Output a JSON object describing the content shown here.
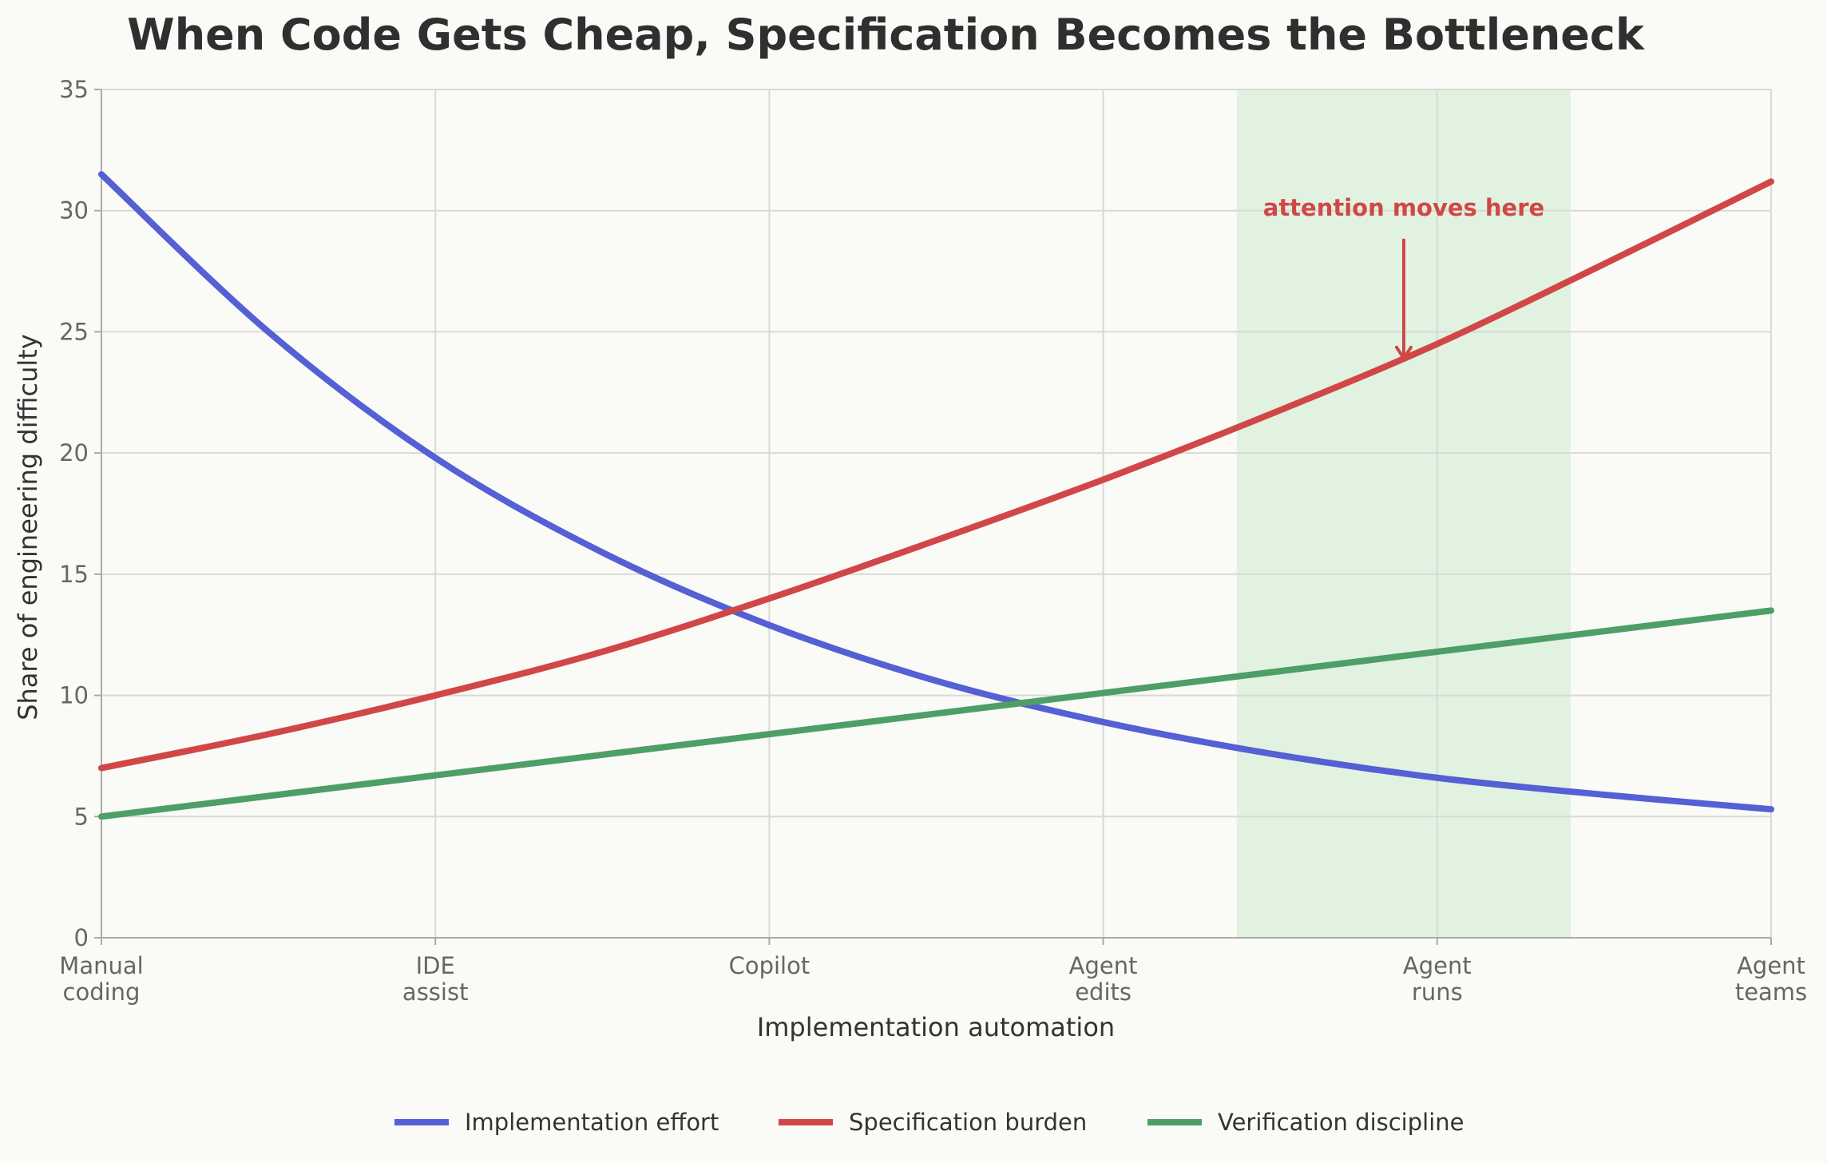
{
  "chart_data": {
    "type": "line",
    "title": "When Code Gets Cheap, Specification Becomes the Bottleneck",
    "xlabel": "Implementation automation",
    "ylabel": "Share of engineering difficulty",
    "categories": [
      [
        "Manual",
        "coding"
      ],
      [
        "IDE",
        "assist"
      ],
      [
        "Copilot"
      ],
      [
        "Agent",
        "edits"
      ],
      [
        "Agent",
        "runs"
      ],
      [
        "Agent",
        "teams"
      ]
    ],
    "xlim": [
      0,
      5
    ],
    "ylim": [
      0,
      35
    ],
    "yticks": [
      0,
      5,
      10,
      15,
      20,
      25,
      30,
      35
    ],
    "grid": true,
    "legend_position": "bottom-center",
    "x": [
      0,
      0.5,
      1,
      1.5,
      2,
      2.5,
      3,
      3.5,
      4,
      4.5,
      5
    ],
    "series": [
      {
        "name": "Implementation effort",
        "color": "#5460d4",
        "values": [
          31.5,
          25.0,
          19.8,
          15.9,
          12.9,
          10.6,
          8.9,
          7.6,
          6.6,
          5.9,
          5.3
        ]
      },
      {
        "name": "Specification burden",
        "color": "#d14747",
        "values": [
          7.0,
          8.4,
          10.0,
          11.8,
          14.0,
          16.4,
          18.9,
          21.6,
          24.5,
          27.8,
          31.2
        ]
      },
      {
        "name": "Verification discipline",
        "color": "#4e9e68",
        "values": [
          5.0,
          5.85,
          6.7,
          7.55,
          8.4,
          9.25,
          10.1,
          10.95,
          11.8,
          12.65,
          13.5
        ]
      }
    ],
    "highlight_band": {
      "x_start": 3.4,
      "x_end": 4.4,
      "color": "#e2f2e0"
    },
    "annotation": {
      "text": "attention moves here",
      "color": "#d14747",
      "points_to": {
        "x": 3.9,
        "y": 23.9
      },
      "text_at": {
        "x": 3.9,
        "y": 29.5
      }
    }
  }
}
